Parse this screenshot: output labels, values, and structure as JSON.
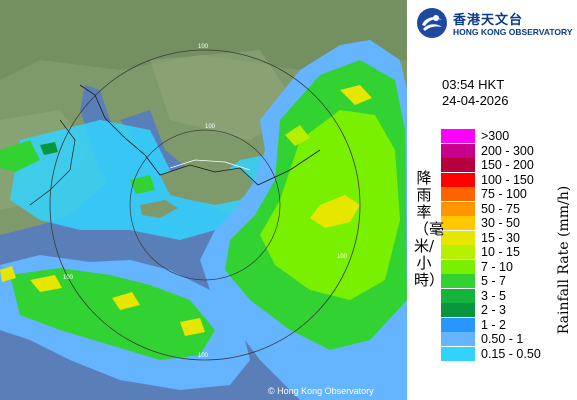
{
  "header": {
    "logo_cn": "香港天文台",
    "logo_en": "HONG KONG OBSERVATORY"
  },
  "timestamp": {
    "time": "03:54 HKT",
    "date": "24-04-2026"
  },
  "legend": {
    "title_cn": "降雨率（毫米/小時）",
    "title_en": "Rainfall Rate (mm/h)",
    "items": [
      {
        "label": ">300",
        "color": "#ff00ff"
      },
      {
        "label": "200 - 300",
        "color": "#c8008c"
      },
      {
        "label": "150 - 200",
        "color": "#b4003c"
      },
      {
        "label": "100 - 150",
        "color": "#ff0000"
      },
      {
        "label": "75 - 100",
        "color": "#ff6400"
      },
      {
        "label": "50 - 75",
        "color": "#ff9600"
      },
      {
        "label": "30 - 50",
        "color": "#ffc800"
      },
      {
        "label": "15 - 30",
        "color": "#e6e600"
      },
      {
        "label": "10 - 15",
        "color": "#b4f000"
      },
      {
        "label": "7 - 10",
        "color": "#78f000"
      },
      {
        "label": "5 - 7",
        "color": "#32d232"
      },
      {
        "label": "3 - 5",
        "color": "#14b43c"
      },
      {
        "label": "2 - 3",
        "color": "#0a963c"
      },
      {
        "label": "1 - 2",
        "color": "#2896ff"
      },
      {
        "label": "0.50 - 1",
        "color": "#64b4ff"
      },
      {
        "label": "0.15 - 0.50",
        "color": "#32d2ff"
      }
    ]
  },
  "map": {
    "range_labels": [
      "100",
      "100",
      "100",
      "100",
      "100"
    ],
    "copyright": "© Hong Kong Observatory"
  }
}
